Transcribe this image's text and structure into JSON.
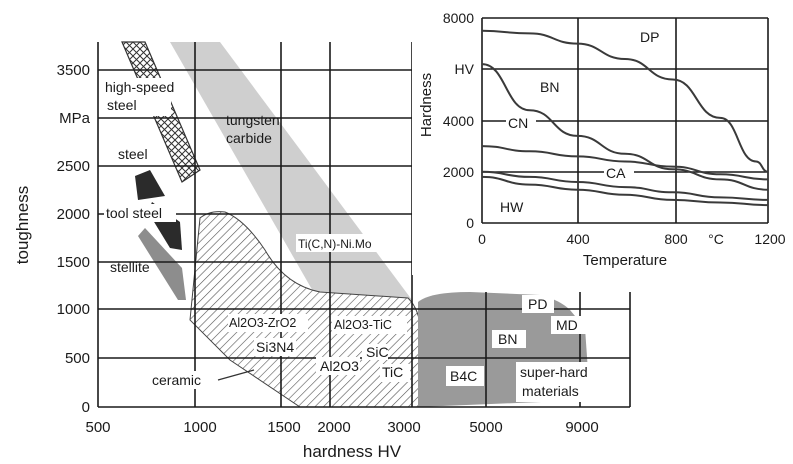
{
  "chart_data": [
    {
      "type": "area",
      "xlabel": "hardness HV",
      "ylabel": "toughness",
      "y_unit": "MPa",
      "x_ticks": [
        "500",
        "1000",
        "1500",
        "2000",
        "3000",
        "5000",
        "9000"
      ],
      "y_ticks": [
        "0",
        "500",
        "1000",
        "1500",
        "2000",
        "2500",
        "3500"
      ],
      "grid": true,
      "regions": [
        {
          "name": "high-speed steel",
          "label": [
            "high-speed",
            "steel"
          ],
          "hardness": [
            700,
            950
          ],
          "toughness": [
            2300,
            3700
          ]
        },
        {
          "name": "steel",
          "label": [
            "steel"
          ],
          "hardness": [
            650,
            800
          ],
          "toughness": [
            2300,
            2600
          ]
        },
        {
          "name": "tool steel",
          "label": [
            "tool steel"
          ],
          "hardness": [
            700,
            1000
          ],
          "toughness": [
            1600,
            2400
          ]
        },
        {
          "name": "stellite",
          "label": [
            "stellite"
          ],
          "hardness": [
            650,
            950
          ],
          "toughness": [
            1100,
            1800
          ]
        },
        {
          "name": "tungsten carbide",
          "label": [
            "tungsten",
            "carbide"
          ],
          "hardness": [
            800,
            3000
          ],
          "toughness": [
            1000,
            3700
          ]
        },
        {
          "name": "Ti(C,N)-Ni.Mo",
          "label": [
            "Ti(C,N)-Ni.Mo"
          ],
          "hardness": [
            1000,
            3000
          ],
          "toughness": [
            1000,
            2000
          ]
        },
        {
          "name": "ceramic",
          "label": [
            "ceramic"
          ],
          "hardness": [
            900,
            3200
          ],
          "toughness": [
            0,
            2000
          ]
        },
        {
          "name": "super-hard materials",
          "label": [
            "super-hard",
            "materials"
          ],
          "hardness": [
            3200,
            9500
          ],
          "toughness": [
            0,
            1150
          ]
        }
      ],
      "region_labels": [
        "Al2O3-ZrO2",
        "Al2O3-TiC",
        "Si3N4",
        "SiC",
        "TiC",
        "Al2O3",
        "B4C",
        "BN",
        "PD",
        "MD"
      ]
    },
    {
      "type": "line",
      "xlabel": "Temperature",
      "ylabel": "Hardness",
      "x_unit": "°C",
      "y_unit": "HV",
      "xlim": [
        0,
        1200
      ],
      "ylim": [
        0,
        8000
      ],
      "x_ticks": [
        "0",
        "400",
        "800",
        "1200"
      ],
      "y_ticks": [
        "0",
        "2000",
        "4000",
        "8000"
      ],
      "grid": true,
      "series": [
        {
          "name": "DP",
          "x": [
            0,
            200,
            400,
            600,
            800,
            1000,
            1150,
            1200
          ],
          "values": [
            7500,
            7400,
            7000,
            6400,
            5600,
            4100,
            2400,
            2000
          ]
        },
        {
          "name": "BN",
          "x": [
            0,
            200,
            400,
            600,
            800,
            1000,
            1200
          ],
          "values": [
            6200,
            4400,
            3400,
            2700,
            2100,
            1700,
            1300
          ]
        },
        {
          "name": "CN",
          "x": [
            0,
            200,
            400,
            600,
            800,
            1000,
            1200
          ],
          "values": [
            3000,
            2800,
            2600,
            2400,
            2200,
            1900,
            1700
          ]
        },
        {
          "name": "CA",
          "x": [
            0,
            200,
            400,
            600,
            800,
            1000,
            1200
          ],
          "values": [
            2000,
            1800,
            1600,
            1400,
            1200,
            1000,
            900
          ]
        },
        {
          "name": "HW",
          "x": [
            0,
            200,
            400,
            600,
            800,
            1000,
            1200
          ],
          "values": [
            1800,
            1500,
            1300,
            1100,
            900,
            800,
            700
          ]
        }
      ]
    }
  ]
}
